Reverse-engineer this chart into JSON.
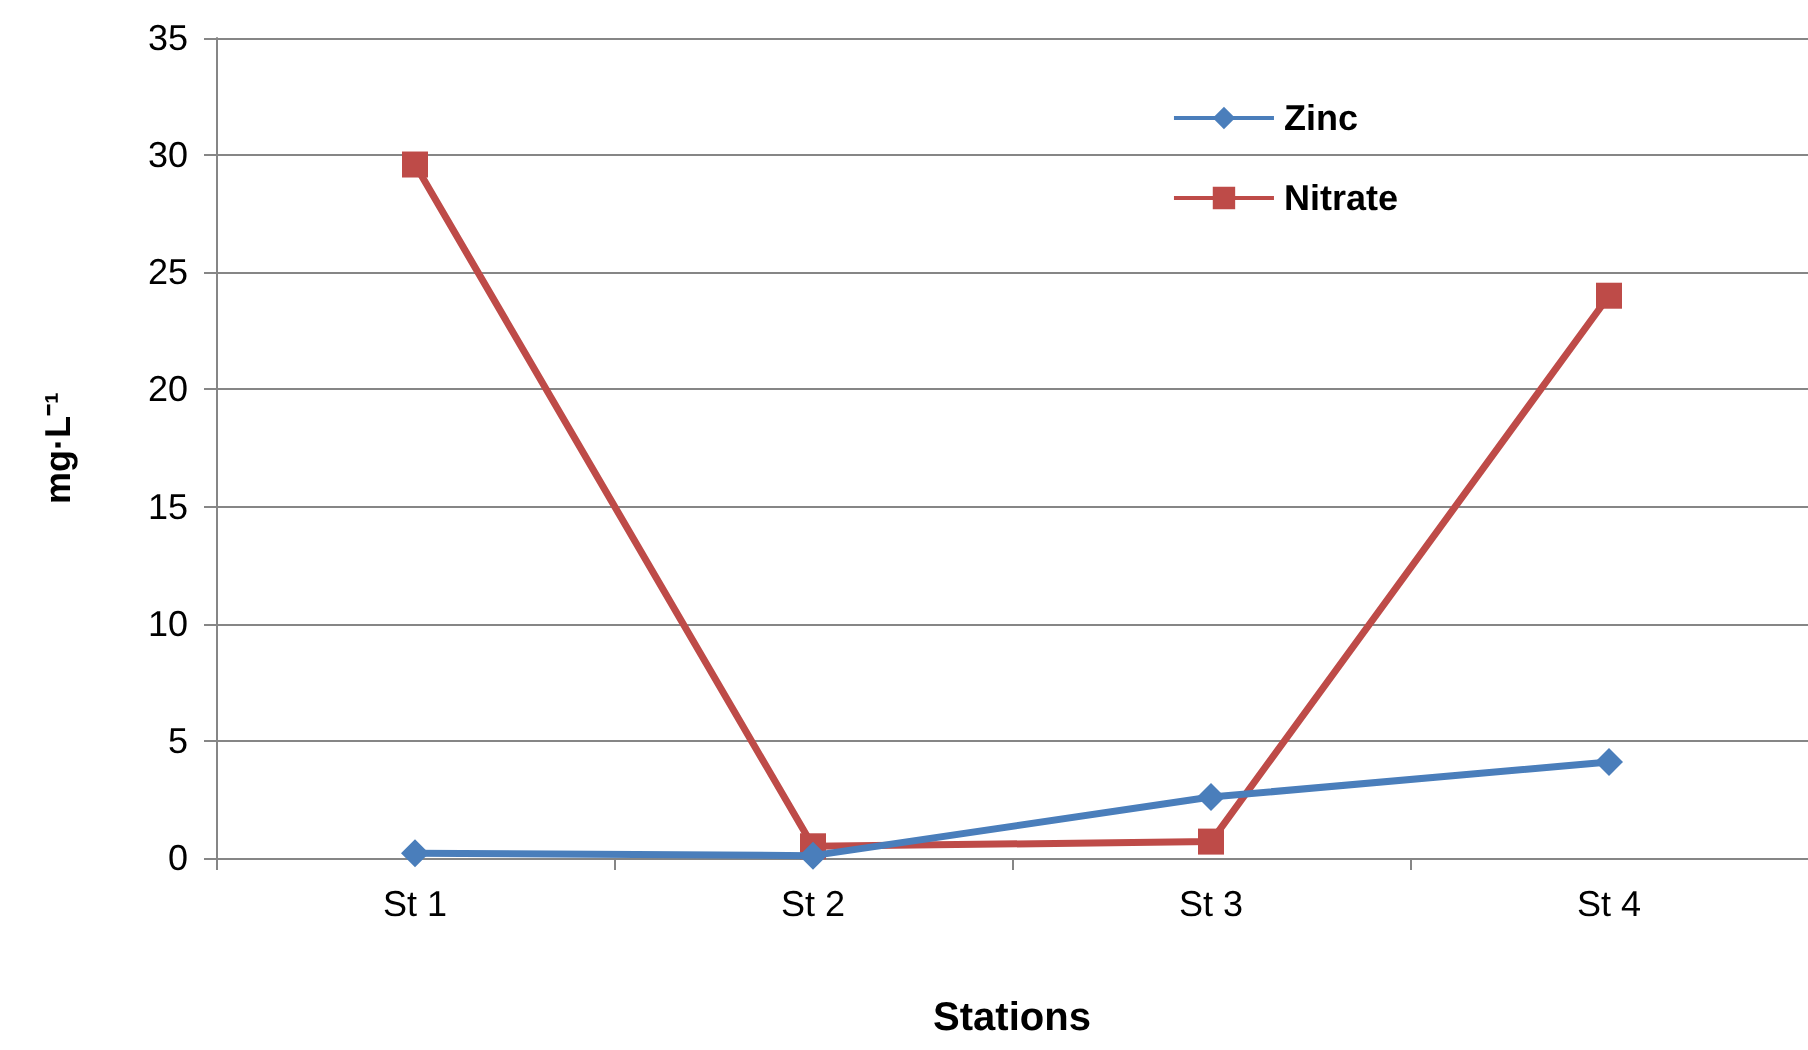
{
  "chart_data": {
    "type": "line",
    "xlabel": "Stations",
    "ylabel": "mg·L⁻¹",
    "categories": [
      "St 1",
      "St 2",
      "St 3",
      "St 4"
    ],
    "series": [
      {
        "name": "Zinc",
        "color": "#4a7ebb",
        "marker": "diamond",
        "values": [
          0.2,
          0.1,
          2.6,
          4.1
        ]
      },
      {
        "name": "Nitrate",
        "color": "#be4b48",
        "marker": "square",
        "values": [
          29.6,
          0.5,
          0.7,
          24.0
        ]
      }
    ],
    "ylim": [
      0,
      35
    ],
    "yticks": [
      0,
      5,
      10,
      15,
      20,
      25,
      30,
      35
    ],
    "grid": "y",
    "legend": "top right",
    "line_style": "solid"
  }
}
